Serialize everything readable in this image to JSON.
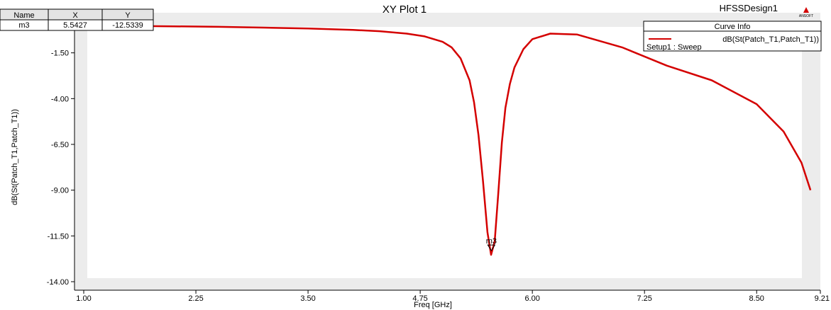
{
  "chart_data": {
    "type": "line",
    "title": "XY Plot 1",
    "design_name": "HFSSDesign1",
    "logo_text": "ANSOFT",
    "xlabel": "Freq [GHz]",
    "ylabel": "dB(St(Patch_T1,Patch_T1))",
    "xlim": [
      1.0,
      9.21
    ],
    "ylim": [
      -14.0,
      1.0
    ],
    "x_ticks": [
      "1.00",
      "2.25",
      "3.50",
      "4.75",
      "6.00",
      "7.25",
      "8.50",
      "9.21"
    ],
    "y_ticks": [
      "-1.50",
      "-4.00",
      "-6.50",
      "-9.00",
      "-11.50",
      "-14.00"
    ],
    "grid": false,
    "legend": {
      "header": "Curve Info",
      "position": "top-right",
      "entries": [
        "dB(St(Patch_T1,Patch_T1))"
      ],
      "subtitle": "Setup1 : Sweep"
    },
    "series": [
      {
        "name": "dB(St(Patch_T1,Patch_T1))",
        "color": "#d40000",
        "x": [
          1.0,
          1.5,
          2.0,
          2.5,
          3.0,
          3.5,
          4.0,
          4.3,
          4.6,
          4.8,
          5.0,
          5.1,
          5.2,
          5.3,
          5.35,
          5.4,
          5.45,
          5.5,
          5.54,
          5.58,
          5.62,
          5.66,
          5.7,
          5.75,
          5.8,
          5.9,
          6.0,
          6.2,
          6.5,
          7.0,
          7.5,
          8.0,
          8.5,
          8.8,
          9.0,
          9.1
        ],
        "y": [
          0.0,
          -0.03,
          -0.05,
          -0.08,
          -0.12,
          -0.17,
          -0.25,
          -0.32,
          -0.45,
          -0.6,
          -0.9,
          -1.2,
          -1.8,
          -3.0,
          -4.2,
          -6.0,
          -8.5,
          -11.3,
          -12.53,
          -11.8,
          -9.2,
          -6.4,
          -4.5,
          -3.2,
          -2.3,
          -1.3,
          -0.75,
          -0.45,
          -0.5,
          -1.2,
          -2.2,
          -3.0,
          -4.3,
          -5.8,
          -7.5,
          -9.0
        ]
      }
    ],
    "marker": {
      "name": "m3",
      "x": 5.5427,
      "y": -12.5339
    },
    "marker_table": {
      "headers": [
        "Name",
        "X",
        "Y"
      ],
      "rows": [
        [
          "m3",
          "5.5427",
          "-12.5339"
        ]
      ]
    }
  }
}
